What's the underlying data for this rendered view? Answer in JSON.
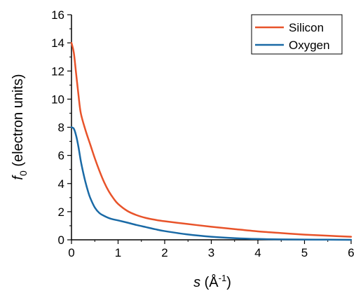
{
  "chart_data": {
    "type": "line",
    "xlabel": {
      "var": "s",
      "unit": " (Å",
      "sup": "-1",
      "close": ")"
    },
    "ylabel": {
      "var": "f",
      "sub": "0",
      "unit": " (electron units)"
    },
    "xlim": [
      0,
      6
    ],
    "ylim": [
      0,
      16
    ],
    "xticks": [
      0,
      1,
      2,
      3,
      4,
      5,
      6
    ],
    "yticks": [
      0,
      2,
      4,
      6,
      8,
      10,
      12,
      14,
      16
    ],
    "grid": false,
    "legend_position": "top-right",
    "series": [
      {
        "name": "Silicon",
        "color": "#e8532a",
        "x": [
          0,
          0.05,
          0.1,
          0.15,
          0.2,
          0.3,
          0.4,
          0.5,
          0.6,
          0.7,
          0.8,
          0.9,
          1.0,
          1.2,
          1.4,
          1.6,
          1.8,
          2.0,
          2.5,
          3.0,
          3.5,
          4.0,
          4.5,
          5.0,
          5.5,
          6.0
        ],
        "values": [
          14.0,
          13.3,
          11.8,
          10.3,
          9.0,
          7.8,
          6.8,
          5.8,
          4.9,
          4.1,
          3.45,
          2.95,
          2.55,
          2.05,
          1.75,
          1.55,
          1.42,
          1.32,
          1.12,
          0.93,
          0.76,
          0.6,
          0.48,
          0.37,
          0.29,
          0.22
        ]
      },
      {
        "name": "Oxygen",
        "color": "#1a6aa6",
        "x": [
          0,
          0.05,
          0.1,
          0.15,
          0.2,
          0.25,
          0.3,
          0.35,
          0.4,
          0.5,
          0.6,
          0.7,
          0.8,
          0.9,
          1.0,
          1.2,
          1.4,
          1.6,
          1.8,
          2.0,
          2.5,
          3.0,
          3.5,
          4.0,
          4.5,
          5.0,
          5.5,
          6.0
        ],
        "values": [
          8.0,
          7.9,
          7.4,
          6.6,
          5.6,
          4.8,
          4.1,
          3.5,
          3.0,
          2.3,
          1.9,
          1.7,
          1.55,
          1.45,
          1.38,
          1.22,
          1.05,
          0.9,
          0.75,
          0.62,
          0.38,
          0.22,
          0.12,
          0.06,
          0.03,
          0.02,
          0.01,
          0.0
        ]
      }
    ]
  }
}
